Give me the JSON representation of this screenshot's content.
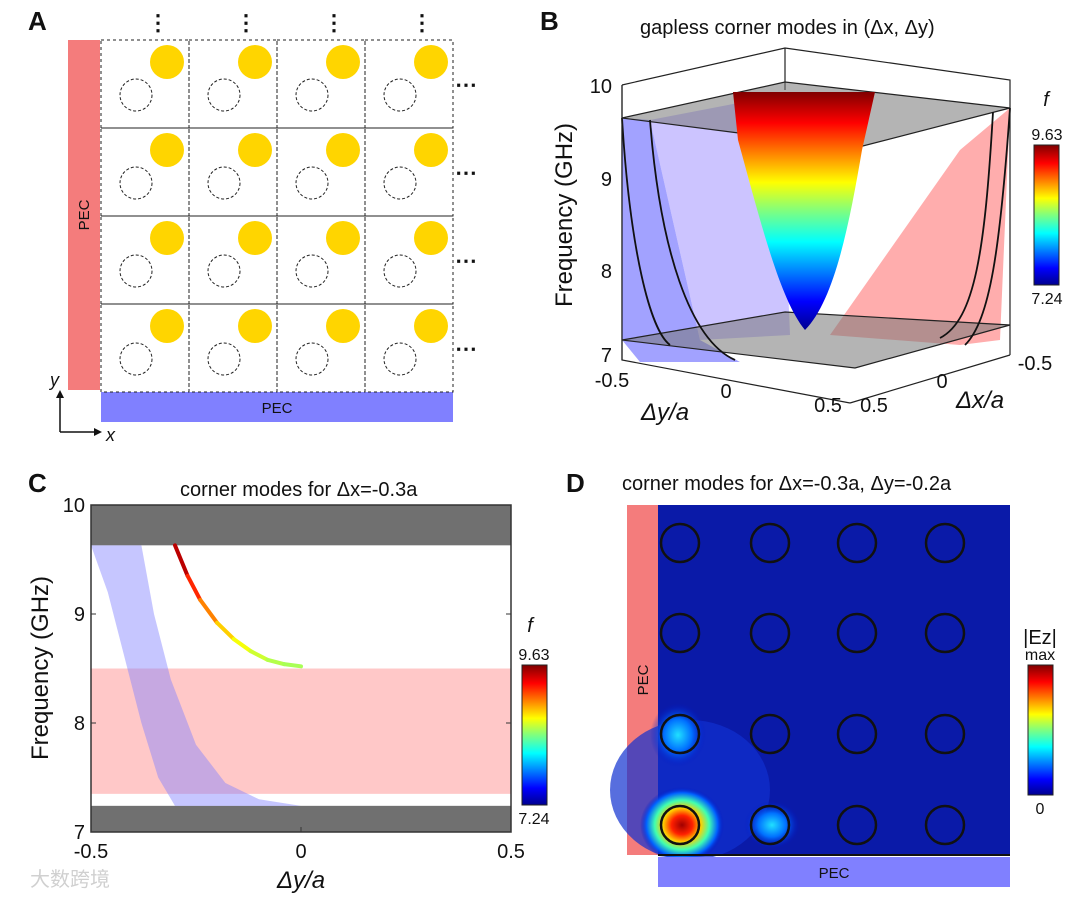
{
  "panels": {
    "A": {
      "label": "A",
      "pec_left": "PEC",
      "pec_bottom": "PEC",
      "axis_x": "x",
      "axis_y": "y",
      "vdots": "⋮",
      "hdots": "⋯",
      "grid_rows": 4,
      "grid_cols": 4,
      "rod_color": "#ffd500",
      "pec_left_color": "#f47c7c",
      "pec_bottom_color": "#8080ff"
    },
    "B": {
      "label": "B",
      "title": "gapless corner modes in (Δx, Δy)",
      "ylabel": "Frequency (GHz)",
      "yticks": [
        "7",
        "8",
        "9",
        "10"
      ],
      "dy_ticks": [
        "-0.5",
        "0",
        "0.5"
      ],
      "dx_ticks": [
        "-0.5",
        "0",
        "0.5"
      ],
      "dy_label": "Δy/a",
      "dx_label": "Δx/a",
      "colorbar": {
        "label": "f",
        "max": "9.63",
        "min": "7.24"
      }
    },
    "C": {
      "label": "C",
      "colorbar": {
        "label": "f",
        "max": "9.63",
        "min": "7.24"
      }
    },
    "D": {
      "label": "D",
      "title": "corner modes for Δx=-0.3a, Δy=-0.2a",
      "pec_left": "PEC",
      "pec_bottom": "PEC",
      "colorbar": {
        "label": "|Ez|",
        "max": "max",
        "min": "0"
      }
    }
  },
  "watermark": "大数跨境",
  "chart_data": [
    {
      "type": "line",
      "title": "corner modes for Δx=-0.3a",
      "xlabel": "Δy/a",
      "ylabel": "Frequency (GHz)",
      "xlim": [
        -0.5,
        0.5
      ],
      "ylim": [
        7,
        10
      ],
      "xticks": [
        "-0.5",
        "0",
        "0.5"
      ],
      "yticks": [
        "7",
        "8",
        "9",
        "10"
      ],
      "gray_bands": [
        [
          7,
          7.24
        ],
        [
          9.63,
          10
        ]
      ],
      "pink_band": [
        7.35,
        8.5
      ],
      "blue_band_left_edge": [
        [
          -0.5,
          9.63
        ],
        [
          -0.46,
          9.2
        ],
        [
          -0.42,
          8.6
        ],
        [
          -0.38,
          8.0
        ],
        [
          -0.34,
          7.5
        ],
        [
          -0.3,
          7.24
        ]
      ],
      "blue_band_right_edge": [
        [
          -0.38,
          9.63
        ],
        [
          -0.35,
          9.0
        ],
        [
          -0.31,
          8.4
        ],
        [
          -0.25,
          7.8
        ],
        [
          -0.18,
          7.45
        ],
        [
          -0.1,
          7.3
        ],
        [
          0,
          7.24
        ]
      ],
      "series": [
        {
          "name": "corner mode",
          "x": [
            -0.3,
            -0.27,
            -0.24,
            -0.2,
            -0.16,
            -0.12,
            -0.08,
            -0.04,
            0
          ],
          "y": [
            9.63,
            9.35,
            9.13,
            8.92,
            8.77,
            8.66,
            8.58,
            8.54,
            8.52
          ]
        }
      ],
      "colormap_range": [
        7.24,
        9.63
      ]
    }
  ]
}
